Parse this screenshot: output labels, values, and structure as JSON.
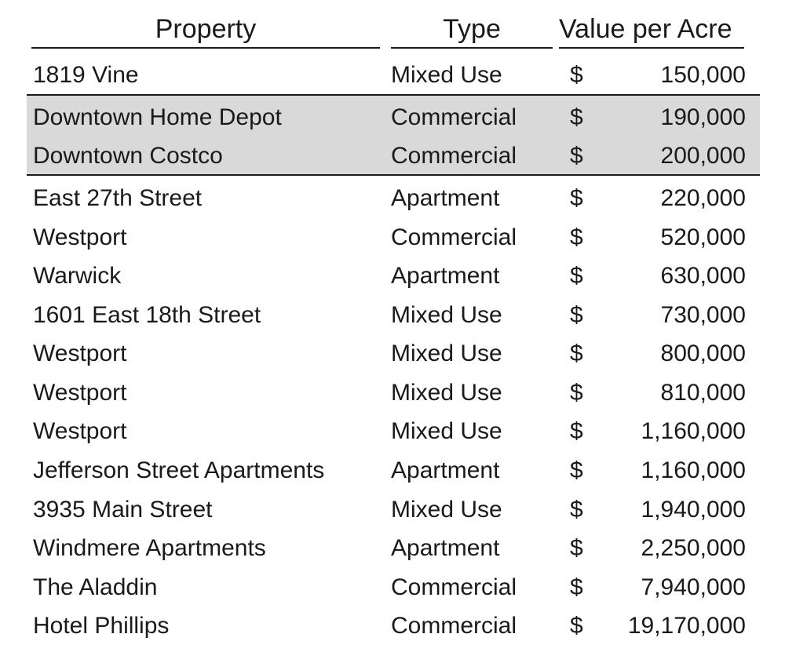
{
  "headers": {
    "property": "Property",
    "type": "Type",
    "value": "Value per Acre"
  },
  "currency_symbol": "$",
  "rows": [
    {
      "property": "1819 Vine",
      "type": "Mixed Use",
      "value": "150,000",
      "highlighted": false
    },
    {
      "property": "Downtown Home Depot",
      "type": "Commercial",
      "value": "190,000",
      "highlighted": true
    },
    {
      "property": "Downtown Costco",
      "type": "Commercial",
      "value": "200,000",
      "highlighted": true
    },
    {
      "property": "East 27th Street",
      "type": "Apartment",
      "value": "220,000",
      "highlighted": false
    },
    {
      "property": "Westport",
      "type": "Commercial",
      "value": "520,000",
      "highlighted": false
    },
    {
      "property": "Warwick",
      "type": "Apartment",
      "value": "630,000",
      "highlighted": false
    },
    {
      "property": "1601 East 18th Street",
      "type": "Mixed Use",
      "value": "730,000",
      "highlighted": false
    },
    {
      "property": "Westport",
      "type": "Mixed Use",
      "value": "800,000",
      "highlighted": false
    },
    {
      "property": "Westport",
      "type": "Mixed Use",
      "value": "810,000",
      "highlighted": false
    },
    {
      "property": "Westport",
      "type": "Mixed Use",
      "value": "1,160,000",
      "highlighted": false
    },
    {
      "property": "Jefferson Street Apartments",
      "type": "Apartment",
      "value": "1,160,000",
      "highlighted": false
    },
    {
      "property": "3935 Main Street",
      "type": "Mixed Use",
      "value": "1,940,000",
      "highlighted": false
    },
    {
      "property": "Windmere Apartments",
      "type": "Apartment",
      "value": "2,250,000",
      "highlighted": false
    },
    {
      "property": "The Aladdin",
      "type": "Commercial",
      "value": "7,940,000",
      "highlighted": false
    },
    {
      "property": "Hotel Phillips",
      "type": "Commercial",
      "value": "19,170,000",
      "highlighted": false
    }
  ]
}
